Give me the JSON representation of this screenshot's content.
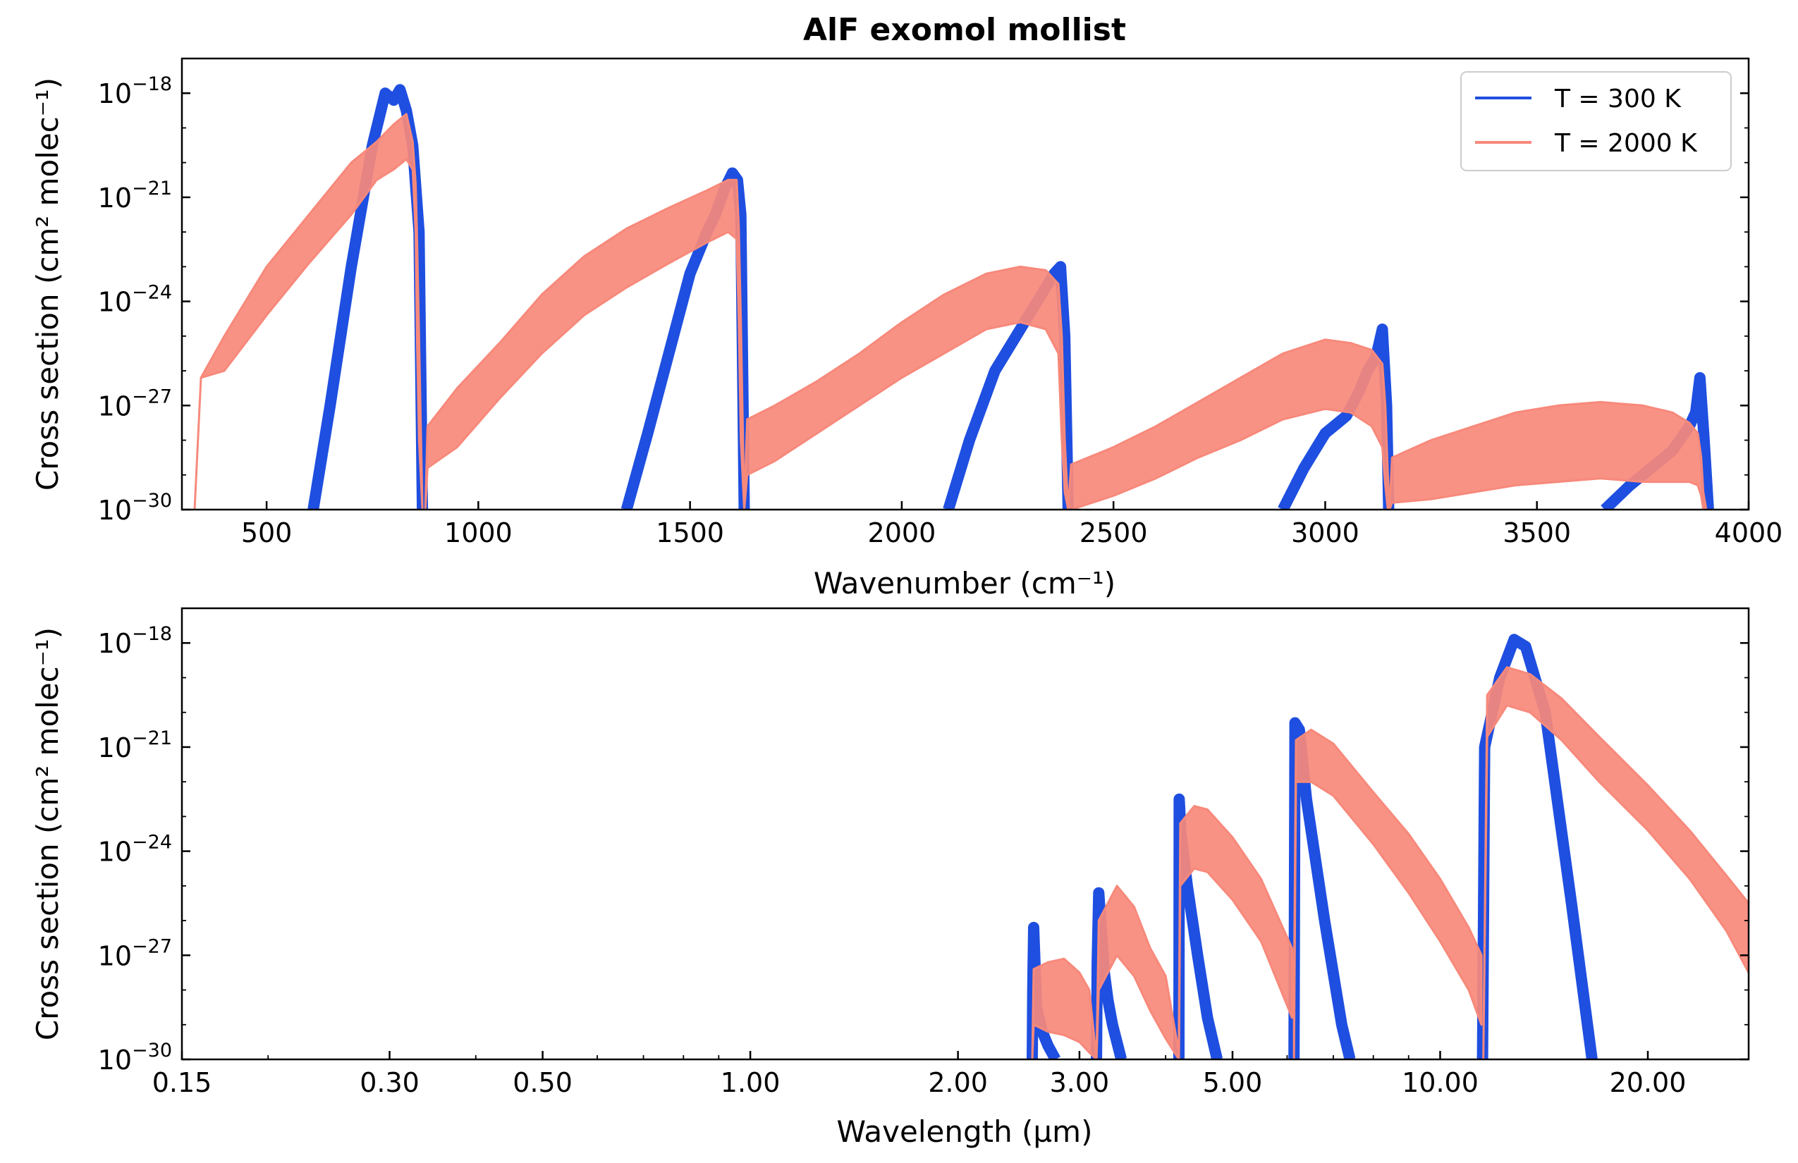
{
  "colors": {
    "series_300K": "#1f4fe0",
    "series_2000K": "#f7897b",
    "axes": "#000000",
    "background": "#ffffff"
  },
  "chart_data": [
    {
      "type": "line",
      "title": "AlF exomol mollist",
      "xlabel": "Wavenumber (cm⁻¹)",
      "ylabel": "Cross section (cm² molec⁻¹)",
      "xlim": [
        300,
        4000
      ],
      "ylim_log10": [
        -30,
        -17
      ],
      "yscale": "log",
      "x_ticks": [
        "500",
        "1000",
        "1500",
        "2000",
        "2500",
        "3000",
        "3500",
        "4000"
      ],
      "y_ticks": [
        {
          "base": "10",
          "exp": "−18"
        },
        {
          "base": "10",
          "exp": "−21"
        },
        {
          "base": "10",
          "exp": "−24"
        },
        {
          "base": "10",
          "exp": "−27"
        },
        {
          "base": "10",
          "exp": "−30"
        }
      ],
      "legend": {
        "position": "top-right",
        "entries": [
          "T = 300 K",
          "T = 2000 K"
        ]
      },
      "series": [
        {
          "name": "T = 300 K",
          "bands": [
            {
              "x": [
                610,
                650,
                700,
                750,
                780,
                800,
                815,
                830,
                845,
                860,
                868
              ],
              "y": [
                -30,
                -27,
                -23,
                -19.5,
                -18,
                -18.2,
                -17.9,
                -18.5,
                -19.5,
                -22,
                -30
              ]
            },
            {
              "x": [
                1350,
                1400,
                1450,
                1500,
                1540,
                1560,
                1580,
                1600,
                1612,
                1620,
                1628
              ],
              "y": [
                -30,
                -27.8,
                -25.5,
                -23.2,
                -22,
                -21.5,
                -20.8,
                -20.3,
                -20.5,
                -21.5,
                -30
              ]
            },
            {
              "x": [
                2110,
                2160,
                2220,
                2280,
                2320,
                2340,
                2360,
                2375,
                2385,
                2393
              ],
              "y": [
                -30,
                -28,
                -26,
                -24.8,
                -24,
                -23.6,
                -23.2,
                -23,
                -25,
                -30
              ]
            },
            {
              "x": [
                2900,
                2950,
                3000,
                3050,
                3080,
                3100,
                3120,
                3135,
                3145,
                3150
              ],
              "y": [
                -30,
                -28.8,
                -27.8,
                -27.3,
                -26.6,
                -26,
                -25.6,
                -24.8,
                -27,
                -30
              ]
            },
            {
              "x": [
                3660,
                3720,
                3780,
                3820,
                3860,
                3875,
                3885,
                3895,
                3905
              ],
              "y": [
                -30,
                -29.3,
                -28.7,
                -28.3,
                -27.6,
                -27.2,
                -26.2,
                -28,
                -30
              ]
            }
          ]
        },
        {
          "name": "T = 2000 K",
          "bands": [
            {
              "x": [
                330,
                345,
                400,
                500,
                600,
                700,
                760,
                800,
                830,
                845,
                852,
                855,
                860,
                868
              ],
              "upper": [
                -30,
                -26.2,
                -25,
                -23,
                -21.5,
                -20,
                -19.4,
                -18.9,
                -18.6,
                -19.4,
                -20.6,
                -22,
                -25,
                -30
              ],
              "lower": [
                -30,
                -26.2,
                -26,
                -24.4,
                -22.9,
                -21.5,
                -20.5,
                -20.2,
                -19.9,
                -20.2,
                -22,
                -25,
                -28,
                -30
              ]
            },
            {
              "x": [
                875,
                880,
                950,
                1050,
                1150,
                1250,
                1350,
                1450,
                1540,
                1590,
                1610,
                1615,
                1620,
                1628
              ],
              "upper": [
                -30,
                -27.6,
                -26.5,
                -25.2,
                -23.8,
                -22.7,
                -21.9,
                -21.3,
                -20.8,
                -20.5,
                -20.5,
                -21.8,
                -24.5,
                -30
              ],
              "lower": [
                -30,
                -28.8,
                -28.2,
                -26.8,
                -25.5,
                -24.4,
                -23.6,
                -22.9,
                -22.3,
                -22,
                -22.2,
                -24.5,
                -28,
                -30
              ]
            },
            {
              "x": [
                1628,
                1635,
                1700,
                1800,
                1900,
                2000,
                2100,
                2200,
                2280,
                2340,
                2370,
                2378,
                2385,
                2393
              ],
              "upper": [
                -30,
                -27.4,
                -27,
                -26.3,
                -25.5,
                -24.6,
                -23.8,
                -23.2,
                -23,
                -23.1,
                -23.5,
                -25,
                -28,
                -30
              ],
              "lower": [
                -30,
                -29,
                -28.6,
                -27.8,
                -27,
                -26.2,
                -25.5,
                -24.8,
                -24.6,
                -24.8,
                -25.5,
                -28,
                -29.5,
                -30
              ]
            },
            {
              "x": [
                2393,
                2400,
                2500,
                2600,
                2700,
                2800,
                2900,
                3000,
                3060,
                3110,
                3135,
                3142,
                3148,
                3152
              ],
              "upper": [
                -30,
                -28.7,
                -28.2,
                -27.6,
                -26.9,
                -26.2,
                -25.5,
                -25.1,
                -25.2,
                -25.4,
                -25.8,
                -27,
                -29,
                -30
              ],
              "lower": [
                -30,
                -30,
                -29.6,
                -29.1,
                -28.5,
                -28,
                -27.4,
                -27.1,
                -27.2,
                -27.6,
                -28.2,
                -29.3,
                -30,
                -30
              ]
            },
            {
              "x": [
                3152,
                3158,
                3250,
                3350,
                3450,
                3550,
                3650,
                3750,
                3820,
                3860,
                3880,
                3888,
                3893,
                3900
              ],
              "upper": [
                -30,
                -28.5,
                -28,
                -27.6,
                -27.2,
                -27,
                -26.9,
                -27,
                -27.2,
                -27.5,
                -27.8,
                -28.5,
                -29.5,
                -30
              ],
              "lower": [
                -30,
                -29.8,
                -29.7,
                -29.5,
                -29.3,
                -29.2,
                -29.1,
                -29.2,
                -29.2,
                -29.2,
                -29.3,
                -29.6,
                -30,
                -30
              ]
            }
          ]
        }
      ]
    },
    {
      "type": "line",
      "title": "",
      "xlabel": "Wavelength (µm)",
      "ylabel": "Cross section (cm² molec⁻¹)",
      "xscale": "log",
      "xlim": [
        0.15,
        28
      ],
      "ylim_log10": [
        -30,
        -17
      ],
      "yscale": "log",
      "x_ticks": [
        {
          "value": 0.15,
          "label": "0.15"
        },
        {
          "value": 0.3,
          "label": "0.30"
        },
        {
          "value": 0.5,
          "label": "0.50"
        },
        {
          "value": 1.0,
          "label": "1.00"
        },
        {
          "value": 2.0,
          "label": "2.00"
        },
        {
          "value": 3.0,
          "label": "3.00"
        },
        {
          "value": 5.0,
          "label": "5.00"
        },
        {
          "value": 10.0,
          "label": "10.00"
        },
        {
          "value": 20.0,
          "label": "20.00"
        }
      ],
      "y_ticks": [
        {
          "base": "10",
          "exp": "−18"
        },
        {
          "base": "10",
          "exp": "−21"
        },
        {
          "base": "10",
          "exp": "−24"
        },
        {
          "base": "10",
          "exp": "−27"
        },
        {
          "base": "10",
          "exp": "−30"
        }
      ],
      "series": [
        {
          "name": "T = 300 K",
          "bands": [
            {
              "x": [
                2.563,
                2.567,
                2.575,
                2.6,
                2.65,
                2.7,
                2.77
              ],
              "y": [
                -30,
                -28,
                -26.2,
                -28.5,
                -29.2,
                -29.6,
                -30
              ]
            },
            {
              "x": [
                3.176,
                3.183,
                3.2,
                3.26,
                3.3,
                3.35,
                3.45
              ],
              "y": [
                -30,
                -27.2,
                -25.2,
                -27.5,
                -28.3,
                -29,
                -30
              ]
            },
            {
              "x": [
                4.181,
                4.185,
                4.21,
                4.3,
                4.45,
                4.6,
                4.75
              ],
              "y": [
                -30,
                -22.5,
                -23.5,
                -25,
                -27,
                -28.8,
                -30
              ]
            },
            {
              "x": [
                6.14,
                6.16,
                6.25,
                6.4,
                6.8,
                7.2,
                7.4
              ],
              "y": [
                -30,
                -20.3,
                -20.5,
                -22.5,
                -26,
                -29,
                -30
              ]
            },
            {
              "x": [
                11.52,
                11.6,
                12.2,
                12.8,
                13.3,
                14.2,
                15.5,
                16.6
              ],
              "y": [
                -30,
                -21,
                -19,
                -17.9,
                -18.1,
                -20,
                -25.5,
                -30
              ]
            }
          ]
        },
        {
          "name": "T = 2000 K",
          "bands": [
            {
              "x": [
                2.563,
                2.575,
                2.7,
                2.85,
                3.0,
                3.1,
                3.176
              ],
              "upper": [
                -30,
                -27.4,
                -27.2,
                -27.1,
                -27.5,
                -28,
                -30
              ],
              "lower": [
                -30,
                -29,
                -29.2,
                -29.3,
                -29.5,
                -29.8,
                -30
              ]
            },
            {
              "x": [
                3.176,
                3.2,
                3.4,
                3.6,
                3.8,
                4.0,
                4.18
              ],
              "upper": [
                -30,
                -26,
                -25,
                -25.6,
                -26.8,
                -27.6,
                -29.8
              ],
              "lower": [
                -30,
                -28,
                -27,
                -27.6,
                -28.6,
                -29.4,
                -30
              ]
            },
            {
              "x": [
                4.181,
                4.2,
                4.4,
                4.6,
                5.0,
                5.5,
                6.1
              ],
              "upper": [
                -29,
                -23.2,
                -22.7,
                -22.8,
                -23.6,
                -24.8,
                -26.8
              ],
              "lower": [
                -30,
                -25,
                -24.5,
                -24.6,
                -25.4,
                -26.6,
                -28.8
              ]
            },
            {
              "x": [
                6.14,
                6.18,
                6.5,
                7.0,
                8.0,
                9.0,
                10.0,
                11.0,
                11.48
              ],
              "upper": [
                -28,
                -20.8,
                -20.5,
                -20.9,
                -22.3,
                -23.5,
                -24.8,
                -26.2,
                -27
              ],
              "lower": [
                -30,
                -22,
                -22,
                -22.4,
                -23.8,
                -25.2,
                -26.6,
                -28,
                -29
              ]
            },
            {
              "x": [
                11.55,
                11.7,
                12.5,
                13.5,
                15.0,
                17.0,
                20.0,
                23.0,
                26.0,
                28.0
              ],
              "upper": [
                -30,
                -19.5,
                -18.7,
                -18.9,
                -19.6,
                -20.7,
                -22.1,
                -23.4,
                -24.7,
                -25.5
              ],
              "lower": [
                -30,
                -20.7,
                -19.8,
                -20,
                -20.8,
                -22,
                -23.4,
                -24.8,
                -26.3,
                -27.5
              ]
            }
          ]
        }
      ]
    }
  ]
}
